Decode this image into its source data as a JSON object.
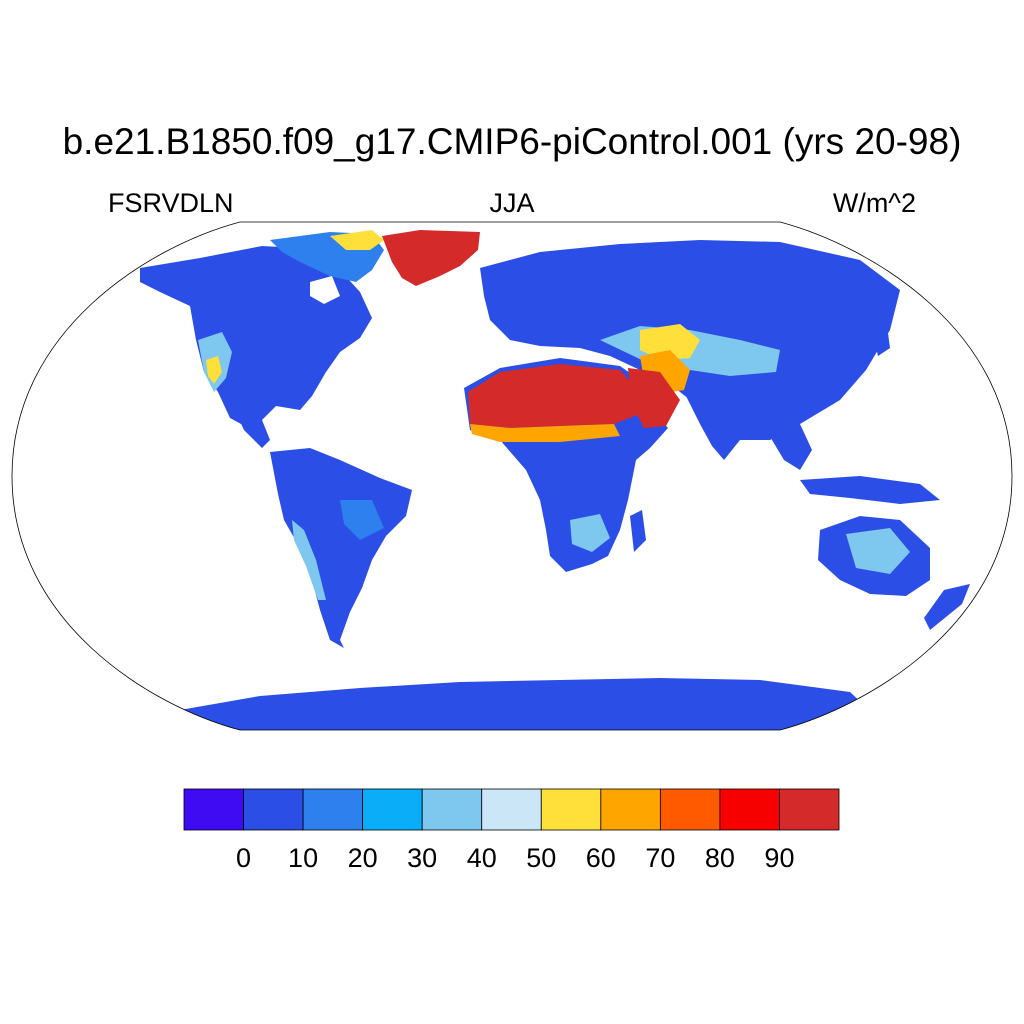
{
  "title": "b.e21.B1850.f09_g17.CMIP6-piControl.001 (yrs 20-98)",
  "subtitle_left": "FSRVDLN",
  "subtitle_center": "JJA",
  "subtitle_right": "W/m^2",
  "colorbar": {
    "labels": [
      "0",
      "10",
      "20",
      "30",
      "40",
      "50",
      "60",
      "70",
      "80",
      "90"
    ],
    "colors": [
      "#3f0bf2",
      "#2b4ee6",
      "#2d80ee",
      "#0aaef8",
      "#7ec7ee",
      "#cae6f7",
      "#ffe03a",
      "#ffa500",
      "#ff5a00",
      "#f60000",
      "#d42a2a"
    ]
  },
  "map_colors": {
    "ocean": "#ffffff",
    "land_default": "#2b4ee6",
    "coastline": "#000000"
  }
}
